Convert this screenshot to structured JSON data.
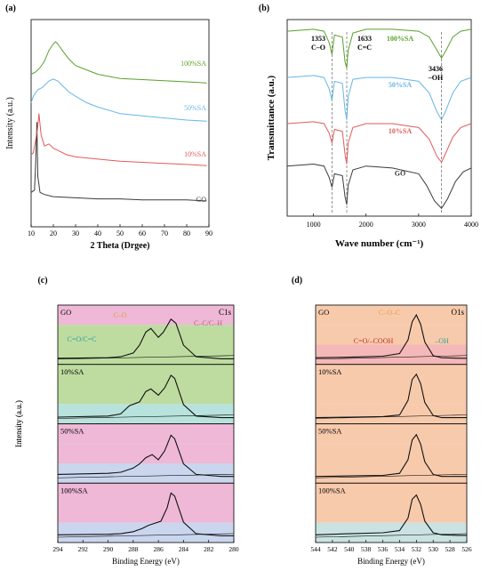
{
  "colors": {
    "green": "#5aa02c",
    "blue": "#66b6e6",
    "red": "#e05a5a",
    "black": "#3a3a3a",
    "orange": "#e0a040",
    "teal": "#30a0a0",
    "dred": "#c03030"
  },
  "chart_data": [
    {
      "panel": "(a)",
      "type": "line",
      "xlabel": "2 Theta (Drgee)",
      "ylabel": "Intensity (a.u.)",
      "xlim": [
        10,
        90
      ],
      "xticks": [
        "10",
        "20",
        "30",
        "40",
        "50",
        "60",
        "70",
        "80",
        "90"
      ],
      "series": [
        {
          "name": "GO",
          "color": "#3a3a3a",
          "offset": 0.12,
          "x": [
            10,
            11.5,
            12,
            12.6,
            13,
            14,
            16,
            20,
            30,
            40,
            50,
            60,
            70,
            80,
            89
          ],
          "y": [
            0.1,
            0.12,
            0.35,
            0.75,
            0.25,
            0.1,
            0.08,
            0.06,
            0.05,
            0.04,
            0.04,
            0.03,
            0.03,
            0.03,
            0.02
          ]
        },
        {
          "name": "10%SA",
          "color": "#e05a5a",
          "offset": 0.3,
          "x": [
            10,
            11,
            12,
            13,
            13.5,
            14.5,
            16,
            18,
            20,
            22,
            26,
            30,
            35,
            40,
            50,
            60,
            70,
            80,
            89
          ],
          "y": [
            0.12,
            0.14,
            0.25,
            0.38,
            0.5,
            0.3,
            0.2,
            0.22,
            0.18,
            0.16,
            0.12,
            0.1,
            0.09,
            0.08,
            0.06,
            0.05,
            0.04,
            0.03,
            0.02
          ]
        },
        {
          "name": "50%SA",
          "color": "#66b6e6",
          "offset": 0.52,
          "x": [
            10,
            11,
            13,
            15,
            18,
            20,
            22,
            24,
            27,
            30,
            35,
            40,
            50,
            60,
            70,
            80,
            89
          ],
          "y": [
            0.2,
            0.26,
            0.32,
            0.34,
            0.4,
            0.42,
            0.4,
            0.36,
            0.3,
            0.26,
            0.2,
            0.16,
            0.1,
            0.08,
            0.06,
            0.04,
            0.03
          ]
        },
        {
          "name": "100%SA",
          "color": "#5aa02c",
          "offset": 0.72,
          "x": [
            10,
            12,
            14,
            16,
            18,
            20,
            21,
            22,
            24,
            27,
            30,
            35,
            40,
            50,
            60,
            70,
            80,
            89
          ],
          "y": [
            0.1,
            0.12,
            0.16,
            0.22,
            0.32,
            0.38,
            0.4,
            0.38,
            0.32,
            0.24,
            0.18,
            0.14,
            0.1,
            0.06,
            0.05,
            0.04,
            0.03,
            0.02
          ]
        }
      ]
    },
    {
      "panel": "(b)",
      "type": "line",
      "xlabel": "Wave number (cm⁻¹)",
      "ylabel": "Transmittance (a.u.)",
      "xlim": [
        500,
        4000
      ],
      "xticks": [
        "1000",
        "2000",
        "3000",
        "4000"
      ],
      "vlines": [
        1353,
        1633,
        3436
      ],
      "annotations": [
        {
          "x": 1353,
          "lines": [
            "1353",
            "C–O"
          ]
        },
        {
          "x": 1633,
          "lines": [
            "1633",
            "C=C"
          ]
        },
        {
          "x": 3436,
          "lines": [
            "3436",
            "–OH"
          ]
        }
      ],
      "series": [
        {
          "name": "100%SA",
          "color": "#5aa02c",
          "x": [
            500,
            1000,
            1200,
            1300,
            1353,
            1400,
            1550,
            1600,
            1633,
            1660,
            1750,
            2000,
            2500,
            3000,
            3200,
            3350,
            3436,
            3520,
            3650,
            3800,
            4000
          ],
          "y": [
            0.96,
            0.97,
            0.96,
            0.9,
            0.84,
            0.94,
            0.93,
            0.8,
            0.77,
            0.86,
            0.95,
            0.97,
            0.97,
            0.96,
            0.93,
            0.86,
            0.82,
            0.86,
            0.93,
            0.96,
            0.97
          ]
        },
        {
          "name": "50%SA",
          "color": "#66b6e6",
          "x": [
            500,
            1000,
            1200,
            1300,
            1353,
            1400,
            1550,
            1600,
            1633,
            1660,
            1750,
            2000,
            2500,
            3000,
            3200,
            3350,
            3436,
            3520,
            3650,
            3800,
            4000
          ],
          "y": [
            0.72,
            0.73,
            0.72,
            0.66,
            0.6,
            0.7,
            0.69,
            0.55,
            0.5,
            0.62,
            0.71,
            0.72,
            0.72,
            0.7,
            0.64,
            0.54,
            0.5,
            0.55,
            0.64,
            0.7,
            0.72
          ]
        },
        {
          "name": "10%SA",
          "color": "#e05a5a",
          "x": [
            500,
            1000,
            1200,
            1300,
            1353,
            1400,
            1550,
            1600,
            1633,
            1660,
            1750,
            2000,
            2500,
            3000,
            3200,
            3350,
            3436,
            3520,
            3650,
            3800,
            4000
          ],
          "y": [
            0.48,
            0.49,
            0.48,
            0.43,
            0.38,
            0.45,
            0.44,
            0.32,
            0.27,
            0.38,
            0.46,
            0.48,
            0.48,
            0.46,
            0.4,
            0.31,
            0.28,
            0.33,
            0.41,
            0.46,
            0.48
          ]
        },
        {
          "name": "GO",
          "color": "#3a3a3a",
          "x": [
            500,
            1000,
            1200,
            1300,
            1353,
            1400,
            1550,
            1600,
            1633,
            1660,
            1750,
            2000,
            2500,
            3000,
            3150,
            3300,
            3436,
            3550,
            3700,
            3850,
            4000
          ],
          "y": [
            0.26,
            0.27,
            0.26,
            0.2,
            0.15,
            0.22,
            0.21,
            0.1,
            0.06,
            0.16,
            0.24,
            0.26,
            0.25,
            0.22,
            0.16,
            0.08,
            0.04,
            0.09,
            0.18,
            0.23,
            0.25
          ]
        }
      ]
    },
    {
      "panel": "(c)",
      "type": "line",
      "xlabel": "Binding Energy (eV)",
      "ylabel": "Intensity (a.u.)",
      "xlim": [
        294,
        280
      ],
      "xticks": [
        "294",
        "292",
        "290",
        "288",
        "286",
        "284",
        "282",
        "280"
      ],
      "corner_label": "C1s",
      "peak_labels": [
        "C–O",
        "C=O/C=C",
        "C–C/C–H"
      ],
      "subpanels": [
        {
          "name": "GO",
          "bands": [
            "#e8a0c8",
            "#a8d080",
            "#a8d080"
          ],
          "x": [
            294,
            290,
            289,
            288,
            287.5,
            287,
            286.6,
            286,
            285.6,
            285,
            284.6,
            284,
            283,
            281,
            280
          ],
          "y": [
            0.05,
            0.06,
            0.08,
            0.15,
            0.3,
            0.55,
            0.62,
            0.45,
            0.55,
            0.8,
            0.72,
            0.3,
            0.08,
            0.04,
            0.04
          ]
        },
        {
          "name": "10%SA",
          "bands": [
            "#a8d080",
            "#a8d080",
            "#a0d8d0"
          ],
          "x": [
            294,
            290,
            289,
            288.3,
            287.5,
            287,
            286.6,
            286,
            285.5,
            285,
            284.7,
            284,
            283,
            281,
            280
          ],
          "y": [
            0.06,
            0.08,
            0.12,
            0.28,
            0.35,
            0.55,
            0.6,
            0.48,
            0.62,
            0.86,
            0.8,
            0.3,
            0.08,
            0.05,
            0.05
          ]
        },
        {
          "name": "50%SA",
          "bands": [
            "#e8a0c8",
            "#e8a0c8",
            "#b8c8e8"
          ],
          "x": [
            294,
            290,
            289,
            288,
            287.5,
            287,
            286.5,
            286,
            285.5,
            285,
            284.7,
            284,
            283,
            281,
            280
          ],
          "y": [
            0.1,
            0.12,
            0.14,
            0.22,
            0.3,
            0.42,
            0.48,
            0.38,
            0.55,
            0.85,
            0.78,
            0.3,
            0.1,
            0.06,
            0.06
          ]
        },
        {
          "name": "100%SA",
          "bands": [
            "#e8a0c8",
            "#e8a0c8",
            "#b8c8e8"
          ],
          "x": [
            294,
            290,
            289,
            288,
            287.3,
            286.8,
            286.3,
            285.8,
            285.3,
            285,
            284.7,
            284,
            283,
            281,
            280
          ],
          "y": [
            0.08,
            0.09,
            0.1,
            0.14,
            0.2,
            0.26,
            0.3,
            0.34,
            0.6,
            0.88,
            0.82,
            0.32,
            0.1,
            0.06,
            0.06
          ]
        }
      ]
    },
    {
      "panel": "(d)",
      "type": "line",
      "xlabel": "Binding Energy (eV)",
      "ylabel": "Intensity (a.u.)",
      "xlim": [
        544,
        526
      ],
      "xticks": [
        "544",
        "542",
        "540",
        "538",
        "536",
        "534",
        "532",
        "530",
        "528",
        "526"
      ],
      "corner_label": "O1s",
      "peak_labels": [
        "C–O–C",
        "C=O/–COOH",
        "–OH"
      ],
      "subpanels": [
        {
          "name": "GO",
          "bands": [
            "#f5b890",
            "#f5b890",
            "#f0a0a0"
          ],
          "x": [
            544,
            540,
            536,
            534,
            533,
            532.5,
            532,
            531.5,
            531,
            530,
            529,
            527,
            526
          ],
          "y": [
            0.06,
            0.07,
            0.09,
            0.14,
            0.4,
            0.75,
            0.88,
            0.7,
            0.36,
            0.1,
            0.06,
            0.05,
            0.05
          ]
        },
        {
          "name": "10%SA",
          "bands": [
            "#f5b890",
            "#f5b890",
            "#f5b890"
          ],
          "x": [
            544,
            540,
            536,
            534,
            533,
            532.5,
            532,
            531.5,
            531,
            530,
            529,
            527,
            526
          ],
          "y": [
            0.05,
            0.06,
            0.07,
            0.1,
            0.38,
            0.78,
            0.88,
            0.7,
            0.34,
            0.09,
            0.05,
            0.05,
            0.05
          ]
        },
        {
          "name": "50%SA",
          "bands": [
            "#f5b890",
            "#f5b890",
            "#f5b890"
          ],
          "x": [
            544,
            540,
            536,
            534,
            533,
            532.5,
            532,
            531.5,
            531,
            530,
            529,
            527,
            526
          ],
          "y": [
            0.06,
            0.07,
            0.08,
            0.12,
            0.38,
            0.76,
            0.86,
            0.68,
            0.34,
            0.1,
            0.06,
            0.06,
            0.06
          ]
        },
        {
          "name": "100%SA",
          "bands": [
            "#f5b890",
            "#f5b890",
            "#b8d8d8"
          ],
          "x": [
            544,
            540,
            536,
            534,
            533,
            532.5,
            532,
            531.5,
            531,
            530,
            529,
            527,
            526
          ],
          "y": [
            0.08,
            0.1,
            0.12,
            0.16,
            0.4,
            0.76,
            0.84,
            0.66,
            0.34,
            0.12,
            0.08,
            0.07,
            0.07
          ]
        }
      ]
    }
  ]
}
